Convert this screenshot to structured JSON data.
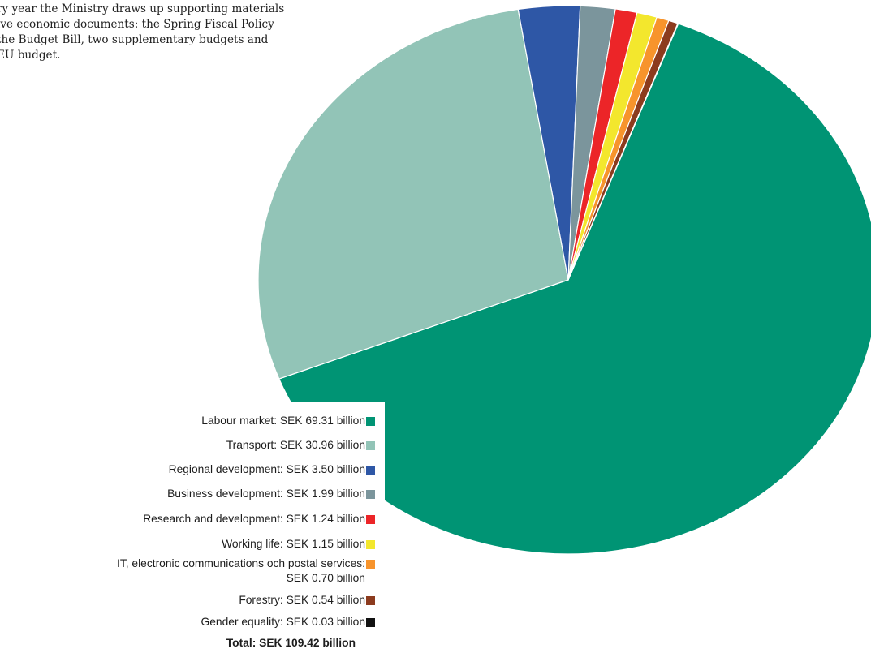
{
  "intro_text": [
    "ry year the Ministry draws up supporting materials",
    "ive economic documents: the Spring Fiscal Policy",
    "the Budget Bill, two supplementary budgets and",
    "EU budget."
  ],
  "chart_data": {
    "type": "pie",
    "title": "",
    "unit": "SEK billion",
    "slices": [
      {
        "label": "Labour market: SEK 69.31 billion",
        "value": 69.31,
        "color": "#009474"
      },
      {
        "label": "Transport: SEK 30.96 billion",
        "value": 30.96,
        "color": "#92c4b7"
      },
      {
        "label": "Regional development: SEK 3.50 billion",
        "value": 3.5,
        "color": "#2e57a6"
      },
      {
        "label": "Business development: SEK 1.99 billion",
        "value": 1.99,
        "color": "#7b959c"
      },
      {
        "label": "Research and development: SEK 1.24 billion",
        "value": 1.24,
        "color": "#ec2528"
      },
      {
        "label": "Working life: SEK 1.15 billion",
        "value": 1.15,
        "color": "#f3e72d"
      },
      {
        "label_lines": [
          "IT, electronic communications och postal services:",
          "SEK 0.70 billion"
        ],
        "value": 0.7,
        "color": "#f7942c"
      },
      {
        "label": "Forestry: SEK 0.54 billion",
        "value": 0.54,
        "color": "#8c3b1e"
      },
      {
        "label": "Gender equality: SEK 0.03 billion",
        "value": 0.03,
        "color": "#111111"
      }
    ],
    "total_label": "Total: SEK 109.42 billion",
    "total": 109.42,
    "legend_position": "bottom-left"
  }
}
